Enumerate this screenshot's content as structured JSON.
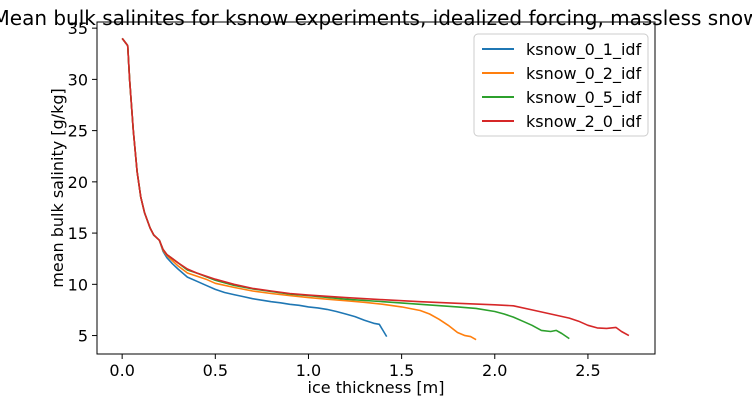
{
  "chart_data": {
    "type": "line",
    "title": "Mean bulk salinites for ksnow experiments, idealized forcing, massless snow",
    "xlabel": "ice thickness [m]",
    "ylabel": "mean bulk salinity [g/kg]",
    "xlim": [
      -0.135,
      2.86
    ],
    "ylim": [
      3.2,
      35.6
    ],
    "xticks": [
      0.0,
      0.5,
      1.0,
      1.5,
      2.0,
      2.5
    ],
    "xtick_labels": [
      "0.0",
      "0.5",
      "1.0",
      "1.5",
      "2.0",
      "2.5"
    ],
    "yticks": [
      5,
      10,
      15,
      20,
      25,
      30,
      35
    ],
    "ytick_labels": [
      "5",
      "10",
      "15",
      "20",
      "25",
      "30",
      "35"
    ],
    "grid": false,
    "legend_position": "top-right",
    "series": [
      {
        "name": "ksnow_0_1_idf",
        "color": "#1f77b4",
        "x": [
          0.0,
          0.03,
          0.04,
          0.06,
          0.08,
          0.1,
          0.12,
          0.15,
          0.17,
          0.2,
          0.22,
          0.24,
          0.27,
          0.3,
          0.35,
          0.4,
          0.45,
          0.5,
          0.55,
          0.6,
          0.65,
          0.7,
          0.75,
          0.8,
          0.85,
          0.9,
          0.95,
          1.0,
          1.05,
          1.1,
          1.15,
          1.2,
          1.25,
          1.3,
          1.35,
          1.38,
          1.42
        ],
        "y": [
          34.0,
          33.3,
          30.0,
          25.0,
          21.0,
          18.5,
          17.0,
          15.5,
          14.8,
          14.3,
          13.2,
          12.6,
          12.0,
          11.5,
          10.7,
          10.3,
          9.9,
          9.5,
          9.2,
          9.0,
          8.8,
          8.6,
          8.45,
          8.3,
          8.2,
          8.05,
          7.95,
          7.8,
          7.7,
          7.55,
          7.35,
          7.1,
          6.85,
          6.5,
          6.2,
          6.1,
          4.9
        ]
      },
      {
        "name": "ksnow_0_2_idf",
        "color": "#ff7f0e",
        "x": [
          0.0,
          0.03,
          0.04,
          0.06,
          0.08,
          0.1,
          0.12,
          0.15,
          0.17,
          0.2,
          0.22,
          0.24,
          0.27,
          0.3,
          0.35,
          0.4,
          0.45,
          0.5,
          0.6,
          0.7,
          0.8,
          0.9,
          1.0,
          1.1,
          1.2,
          1.3,
          1.4,
          1.5,
          1.6,
          1.65,
          1.7,
          1.75,
          1.8,
          1.84,
          1.87,
          1.9
        ],
        "y": [
          34.0,
          33.3,
          30.0,
          25.0,
          21.0,
          18.5,
          17.0,
          15.5,
          14.8,
          14.3,
          13.3,
          12.8,
          12.3,
          11.8,
          11.1,
          10.8,
          10.5,
          10.1,
          9.7,
          9.35,
          9.1,
          8.9,
          8.7,
          8.55,
          8.4,
          8.25,
          8.05,
          7.8,
          7.45,
          7.1,
          6.6,
          6.0,
          5.3,
          5.0,
          4.9,
          4.6
        ]
      },
      {
        "name": "ksnow_0_5_idf",
        "color": "#2ca02c",
        "x": [
          0.0,
          0.03,
          0.04,
          0.06,
          0.08,
          0.1,
          0.12,
          0.15,
          0.17,
          0.2,
          0.22,
          0.24,
          0.27,
          0.3,
          0.35,
          0.4,
          0.5,
          0.6,
          0.7,
          0.8,
          0.9,
          1.0,
          1.2,
          1.4,
          1.6,
          1.8,
          1.9,
          2.0,
          2.05,
          2.1,
          2.15,
          2.2,
          2.25,
          2.3,
          2.33,
          2.36,
          2.4
        ],
        "y": [
          34.0,
          33.3,
          30.0,
          25.0,
          21.0,
          18.5,
          17.0,
          15.5,
          14.8,
          14.3,
          13.4,
          12.9,
          12.5,
          12.1,
          11.4,
          11.1,
          10.4,
          9.9,
          9.55,
          9.3,
          9.05,
          8.9,
          8.55,
          8.3,
          8.05,
          7.8,
          7.65,
          7.35,
          7.1,
          6.8,
          6.4,
          6.0,
          5.5,
          5.4,
          5.5,
          5.2,
          4.7
        ]
      },
      {
        "name": "ksnow_2_0_idf",
        "color": "#d62728",
        "x": [
          0.0,
          0.03,
          0.04,
          0.06,
          0.08,
          0.1,
          0.12,
          0.15,
          0.17,
          0.2,
          0.22,
          0.24,
          0.27,
          0.3,
          0.35,
          0.4,
          0.5,
          0.6,
          0.7,
          0.8,
          0.9,
          1.0,
          1.2,
          1.4,
          1.6,
          1.8,
          2.0,
          2.1,
          2.2,
          2.3,
          2.4,
          2.45,
          2.5,
          2.55,
          2.6,
          2.65,
          2.68,
          2.72
        ],
        "y": [
          34.0,
          33.3,
          30.0,
          25.0,
          21.0,
          18.5,
          17.0,
          15.5,
          14.8,
          14.3,
          13.4,
          12.9,
          12.5,
          12.1,
          11.5,
          11.1,
          10.5,
          10.0,
          9.6,
          9.35,
          9.1,
          8.95,
          8.7,
          8.5,
          8.3,
          8.15,
          8.0,
          7.9,
          7.5,
          7.1,
          6.7,
          6.4,
          6.0,
          5.75,
          5.7,
          5.8,
          5.4,
          5.0
        ]
      }
    ]
  }
}
